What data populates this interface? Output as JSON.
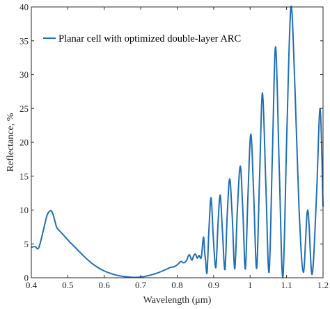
{
  "chart_data": {
    "type": "line",
    "title": "",
    "xlabel": "Wavelength (μm)",
    "ylabel": "Reflectance, %",
    "xlim": [
      0.4,
      1.2
    ],
    "ylim": [
      0,
      40
    ],
    "xticks": [
      "0.4",
      "0.5",
      "0.6",
      "0.7",
      "0.8",
      "0.9",
      "1",
      "1.1",
      "1.2"
    ],
    "yticks": [
      "0",
      "5",
      "10",
      "15",
      "20",
      "25",
      "30",
      "35",
      "40"
    ],
    "grid": false,
    "legend_position": "top-left",
    "series": [
      {
        "name": "Planar cell with optimized double-layer ARC",
        "color": "#1f6fb5",
        "x": [
          0.4,
          0.41,
          0.42,
          0.432,
          0.443,
          0.452,
          0.458,
          0.464,
          0.47,
          0.478,
          0.49,
          0.505,
          0.52,
          0.54,
          0.56,
          0.58,
          0.6,
          0.62,
          0.64,
          0.66,
          0.68,
          0.7,
          0.72,
          0.74,
          0.76,
          0.78,
          0.79,
          0.8,
          0.81,
          0.818,
          0.825,
          0.833,
          0.84,
          0.845,
          0.85,
          0.855,
          0.86,
          0.866,
          0.872,
          0.875,
          0.878,
          0.882,
          0.887,
          0.893,
          0.899,
          0.906,
          0.912,
          0.918,
          0.924,
          0.931,
          0.937,
          0.944,
          0.951,
          0.958,
          0.965,
          0.973,
          0.98,
          0.987,
          0.994,
          1.002,
          1.01,
          1.018,
          1.026,
          1.034,
          1.043,
          1.052,
          1.061,
          1.07,
          1.08,
          1.09,
          1.101,
          1.112,
          1.123,
          1.134,
          1.146,
          1.158,
          1.17,
          1.182,
          1.192,
          1.2
        ],
        "y": [
          4.5,
          4.6,
          4.4,
          6.8,
          9.2,
          9.9,
          9.6,
          8.5,
          7.4,
          6.9,
          6.2,
          5.3,
          4.5,
          3.4,
          2.4,
          1.6,
          1.0,
          0.6,
          0.3,
          0.15,
          0.05,
          0.1,
          0.3,
          0.6,
          1.0,
          1.5,
          1.6,
          1.9,
          2.4,
          2.2,
          2.5,
          3.4,
          2.6,
          3.2,
          3.5,
          2.9,
          3.3,
          3.0,
          6.0,
          4.0,
          2.5,
          0.8,
          7.0,
          11.8,
          6.0,
          1.5,
          8.0,
          12.2,
          7.0,
          1.2,
          9.0,
          14.6,
          9.0,
          1.3,
          10.0,
          16.5,
          10.0,
          1.3,
          12.0,
          21.2,
          12.0,
          1.4,
          15.0,
          27.3,
          14.0,
          0.8,
          18.0,
          34.1,
          16.0,
          0.1,
          22.0,
          40.0,
          28.0,
          10.5,
          0.8,
          10.0,
          0.5,
          12.0,
          25.0,
          10.5
        ]
      }
    ]
  }
}
